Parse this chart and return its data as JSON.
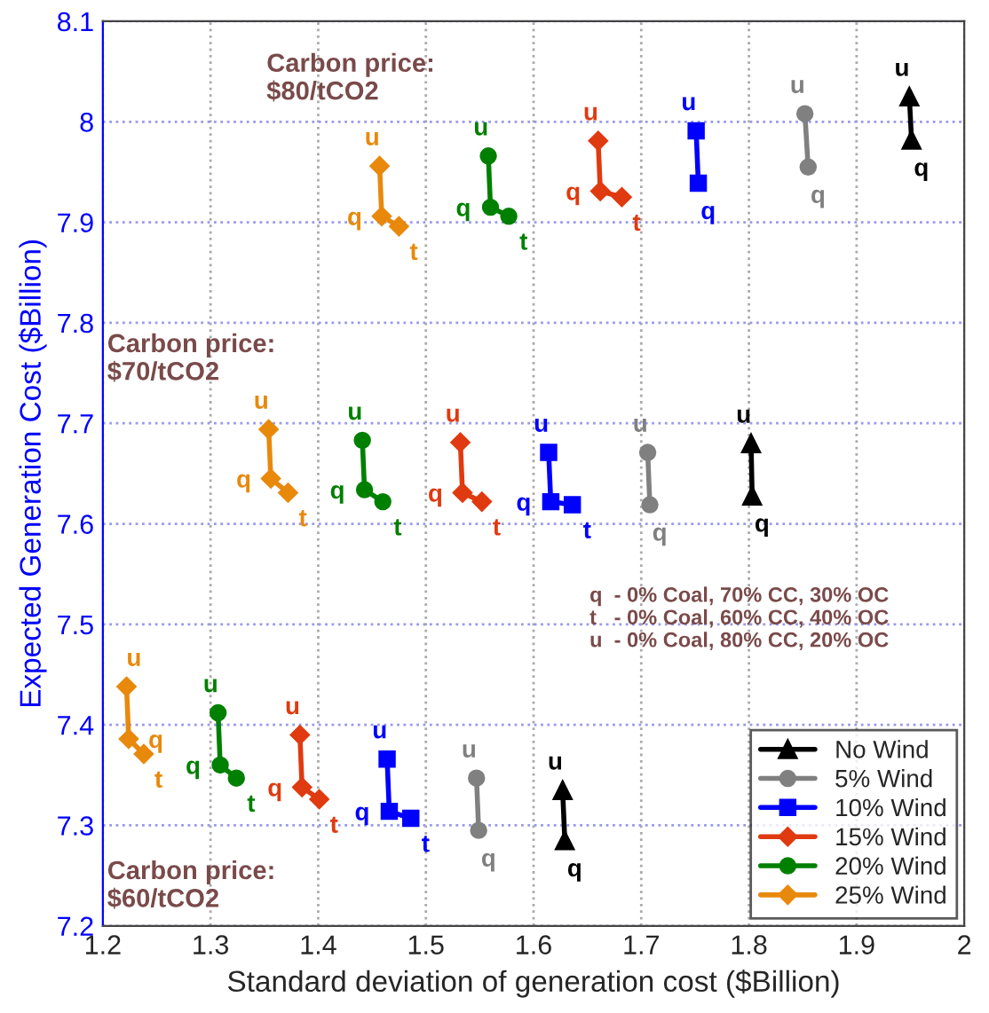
{
  "chart_data": {
    "type": "line",
    "xlabel": "Standard deviation of generation cost ($Billion)",
    "ylabel": "Expected Generation Cost ($Billion)",
    "xlim": [
      1.2,
      2.0
    ],
    "xticks": [
      1.2,
      1.3,
      1.4,
      1.5,
      1.6,
      1.7,
      1.8,
      1.9,
      2
    ],
    "ylim": [
      7.2,
      8.1
    ],
    "yticks": [
      7.2,
      7.3,
      7.4,
      7.5,
      7.6,
      7.7,
      7.8,
      7.9,
      8,
      8.1
    ],
    "grid": true,
    "legend": "bottom right",
    "series": [
      {
        "name": "No Wind",
        "color": "#000000",
        "marker": "triangle",
        "x": [
          1.627,
          1.629,
          null,
          1.802,
          1.803,
          null,
          1.949,
          1.951
        ],
        "values": [
          7.335,
          7.285,
          null,
          7.68,
          7.628,
          null,
          8.025,
          7.982
        ]
      },
      {
        "name": "5% Wind",
        "color": "#808080",
        "marker": "circle",
        "x": [
          1.547,
          1.549,
          null,
          1.706,
          1.708,
          null,
          1.852,
          1.855
        ],
        "values": [
          7.347,
          7.295,
          null,
          7.671,
          7.619,
          null,
          8.008,
          7.955
        ]
      },
      {
        "name": "10% Wind",
        "color": "#0000ff",
        "marker": "square",
        "x": [
          1.464,
          1.466,
          1.486,
          null,
          1.614,
          1.616,
          1.636,
          null,
          1.751,
          1.753
        ],
        "values": [
          7.366,
          7.314,
          7.307,
          null,
          7.671,
          7.622,
          7.619,
          null,
          7.991,
          7.939
        ]
      },
      {
        "name": "15% Wind",
        "color": "#e03a10",
        "marker": "diamond",
        "x": [
          1.383,
          1.385,
          1.401,
          null,
          1.532,
          1.534,
          1.552,
          null,
          1.66,
          1.662,
          1.682
        ],
        "values": [
          7.39,
          7.338,
          7.326,
          null,
          7.681,
          7.631,
          7.622,
          null,
          7.981,
          7.931,
          7.925
        ]
      },
      {
        "name": "20% Wind",
        "color": "#008000",
        "marker": "circle",
        "x": [
          1.307,
          1.309,
          1.324,
          null,
          1.441,
          1.443,
          1.46,
          null,
          1.558,
          1.56,
          1.577
        ],
        "values": [
          7.412,
          7.36,
          7.347,
          null,
          7.683,
          7.634,
          7.622,
          null,
          7.966,
          7.915,
          7.906
        ]
      },
      {
        "name": "25% Wind",
        "color": "#e8890c",
        "marker": "diamond",
        "x": [
          1.222,
          1.224,
          1.238,
          null,
          1.354,
          1.356,
          1.372,
          null,
          1.457,
          1.459,
          1.475
        ],
        "values": [
          7.438,
          7.386,
          7.371,
          null,
          7.694,
          7.645,
          7.631,
          null,
          7.956,
          7.906,
          7.896
        ]
      }
    ],
    "annotations": [
      "Carbon price:\n$80/tCO2",
      "Carbon price:\n$70/tCO2",
      "Carbon price:\n$60/tCO2",
      "q  - 0% Coal, 70% CC, 30% OC\nt   - 0% Coal, 60% CC, 40% OC\nu  - 0% Coal, 80% CC, 20% OC",
      {
        "text": "u",
        "x": 1.457,
        "y": 7.956
      },
      {
        "text": "q",
        "x": 1.459,
        "y": 7.906
      },
      {
        "text": "t",
        "x": 1.475,
        "y": 7.896
      },
      {
        "text": "u",
        "x": 1.558,
        "y": 7.966
      },
      {
        "text": "q",
        "x": 1.56,
        "y": 7.915
      },
      {
        "text": "t",
        "x": 1.577,
        "y": 7.906
      },
      {
        "text": "u",
        "x": 1.66,
        "y": 7.981
      },
      {
        "text": "q",
        "x": 1.662,
        "y": 7.931
      },
      {
        "text": "t",
        "x": 1.682,
        "y": 7.925
      },
      {
        "text": "u",
        "x": 1.751,
        "y": 7.991
      },
      {
        "text": "q",
        "x": 1.753,
        "y": 7.939
      },
      {
        "text": "u",
        "x": 1.852,
        "y": 8.008
      },
      {
        "text": "q",
        "x": 1.855,
        "y": 7.955
      },
      {
        "text": "u",
        "x": 1.949,
        "y": 8.025
      },
      {
        "text": "q",
        "x": 1.951,
        "y": 7.982
      },
      {
        "text": "u",
        "x": 1.354,
        "y": 7.694
      },
      {
        "text": "q",
        "x": 1.356,
        "y": 7.645
      },
      {
        "text": "t",
        "x": 1.372,
        "y": 7.631
      },
      {
        "text": "u",
        "x": 1.441,
        "y": 7.683
      },
      {
        "text": "q",
        "x": 1.443,
        "y": 7.634
      },
      {
        "text": "t",
        "x": 1.46,
        "y": 7.622
      },
      {
        "text": "u",
        "x": 1.532,
        "y": 7.681
      },
      {
        "text": "q",
        "x": 1.534,
        "y": 7.631
      },
      {
        "text": "t",
        "x": 1.552,
        "y": 7.622
      },
      {
        "text": "u",
        "x": 1.614,
        "y": 7.671
      },
      {
        "text": "q",
        "x": 1.616,
        "y": 7.622
      },
      {
        "text": "t",
        "x": 1.636,
        "y": 7.619
      },
      {
        "text": "u",
        "x": 1.706,
        "y": 7.671
      },
      {
        "text": "q",
        "x": 1.708,
        "y": 7.619
      },
      {
        "text": "u",
        "x": 1.802,
        "y": 7.68
      },
      {
        "text": "q",
        "x": 1.803,
        "y": 7.628
      },
      {
        "text": "u",
        "x": 1.222,
        "y": 7.438
      },
      {
        "text": "q",
        "x": 1.224,
        "y": 7.386
      },
      {
        "text": "t",
        "x": 1.238,
        "y": 7.371
      },
      {
        "text": "u",
        "x": 1.307,
        "y": 7.412
      },
      {
        "text": "q",
        "x": 1.309,
        "y": 7.36
      },
      {
        "text": "t",
        "x": 1.324,
        "y": 7.347
      },
      {
        "text": "u",
        "x": 1.383,
        "y": 7.39
      },
      {
        "text": "q",
        "x": 1.385,
        "y": 7.338
      },
      {
        "text": "t",
        "x": 1.401,
        "y": 7.326
      },
      {
        "text": "u",
        "x": 1.464,
        "y": 7.366
      },
      {
        "text": "q",
        "x": 1.466,
        "y": 7.314
      },
      {
        "text": "t",
        "x": 1.486,
        "y": 7.307
      },
      {
        "text": "u",
        "x": 1.547,
        "y": 7.347
      },
      {
        "text": "q",
        "x": 1.549,
        "y": 7.295
      },
      {
        "text": "u",
        "x": 1.627,
        "y": 7.335
      },
      {
        "text": "q",
        "x": 1.629,
        "y": 7.285
      }
    ]
  }
}
